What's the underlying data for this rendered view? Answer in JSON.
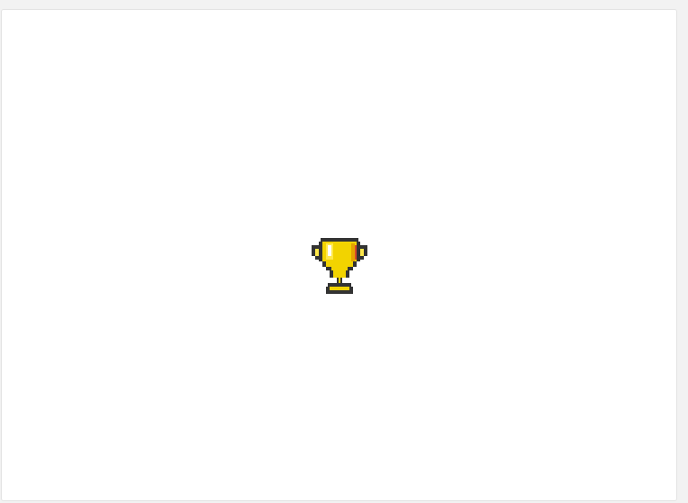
{
  "content": {
    "icon": "trophy-icon",
    "colors": {
      "outline": "#333333",
      "gold": "#f2d300",
      "gold_light": "#ffe84a",
      "gold_shadow": "#e5a300",
      "highlight": "#ffffff",
      "accent_red": "#d84a2a"
    }
  }
}
